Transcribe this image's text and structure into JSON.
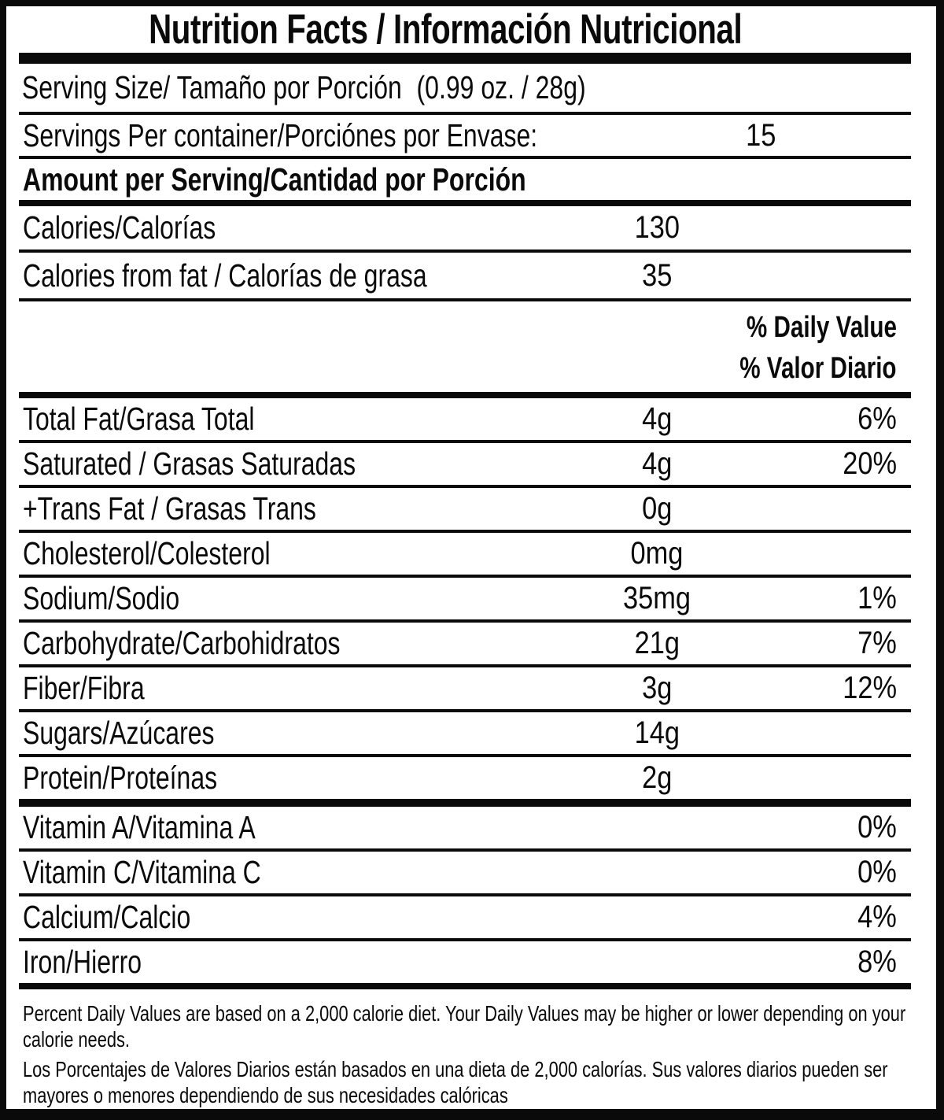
{
  "title": "Nutrition Facts / Información Nutricional",
  "serving_size": {
    "label": "Serving Size/ Tamaño por Porción",
    "value": "(0.99 oz. / 28g)"
  },
  "servings_per_container": {
    "label": "Servings Per container/Porciónes por Envase:",
    "value": "15"
  },
  "amount_header": "Amount per Serving/Cantidad por Porción",
  "calories_row": {
    "label": "Calories/Calorías",
    "value": "130"
  },
  "calories_from_fat_row": {
    "label": "Calories from fat / Calorías de grasa",
    "value": "35"
  },
  "daily_value_header": {
    "line1": "% Daily Value",
    "line2": "% Valor Diario"
  },
  "nutrients": [
    {
      "label": "Total Fat/Grasa Total",
      "value": "4g",
      "daily_value": "6%"
    },
    {
      "label": "Saturated / Grasas Saturadas",
      "value": "4g",
      "daily_value": "20%"
    },
    {
      "label": "+Trans Fat / Grasas Trans",
      "value": "0g",
      "daily_value": ""
    },
    {
      "label": "Cholesterol/Colesterol",
      "value": "0mg",
      "daily_value": ""
    },
    {
      "label": "Sodium/Sodio",
      "value": "35mg",
      "daily_value": "1%"
    },
    {
      "label": "Carbohydrate/Carbohidratos",
      "value": "21g",
      "daily_value": "7%"
    },
    {
      "label": "Fiber/Fibra",
      "value": "3g",
      "daily_value": "12%"
    },
    {
      "label": "Sugars/Azúcares",
      "value": "14g",
      "daily_value": ""
    },
    {
      "label": "Protein/Proteínas",
      "value": "2g",
      "daily_value": ""
    }
  ],
  "vitamins": [
    {
      "label": "Vitamin A/Vitamina A",
      "daily_value": "0%"
    },
    {
      "label": "Vitamin C/Vitamina C",
      "daily_value": "0%"
    },
    {
      "label": "Calcium/Calcio",
      "daily_value": "4%"
    },
    {
      "label": "Iron/Hierro",
      "daily_value": "8%"
    }
  ],
  "footnotes": {
    "english": "Percent Daily Values are based on a 2,000 calorie diet. Your Daily Values may be higher or lower depending on your calorie needs.",
    "spanish": "Los Porcentajes de Valores Diarios están basados en una dieta de 2,000 calorías. Sus valores diarios pueden ser mayores o menores dependiendo de sus necesidades calóricas"
  },
  "colors": {
    "ink": "#0a0a0a",
    "paper": "#ffffff"
  }
}
